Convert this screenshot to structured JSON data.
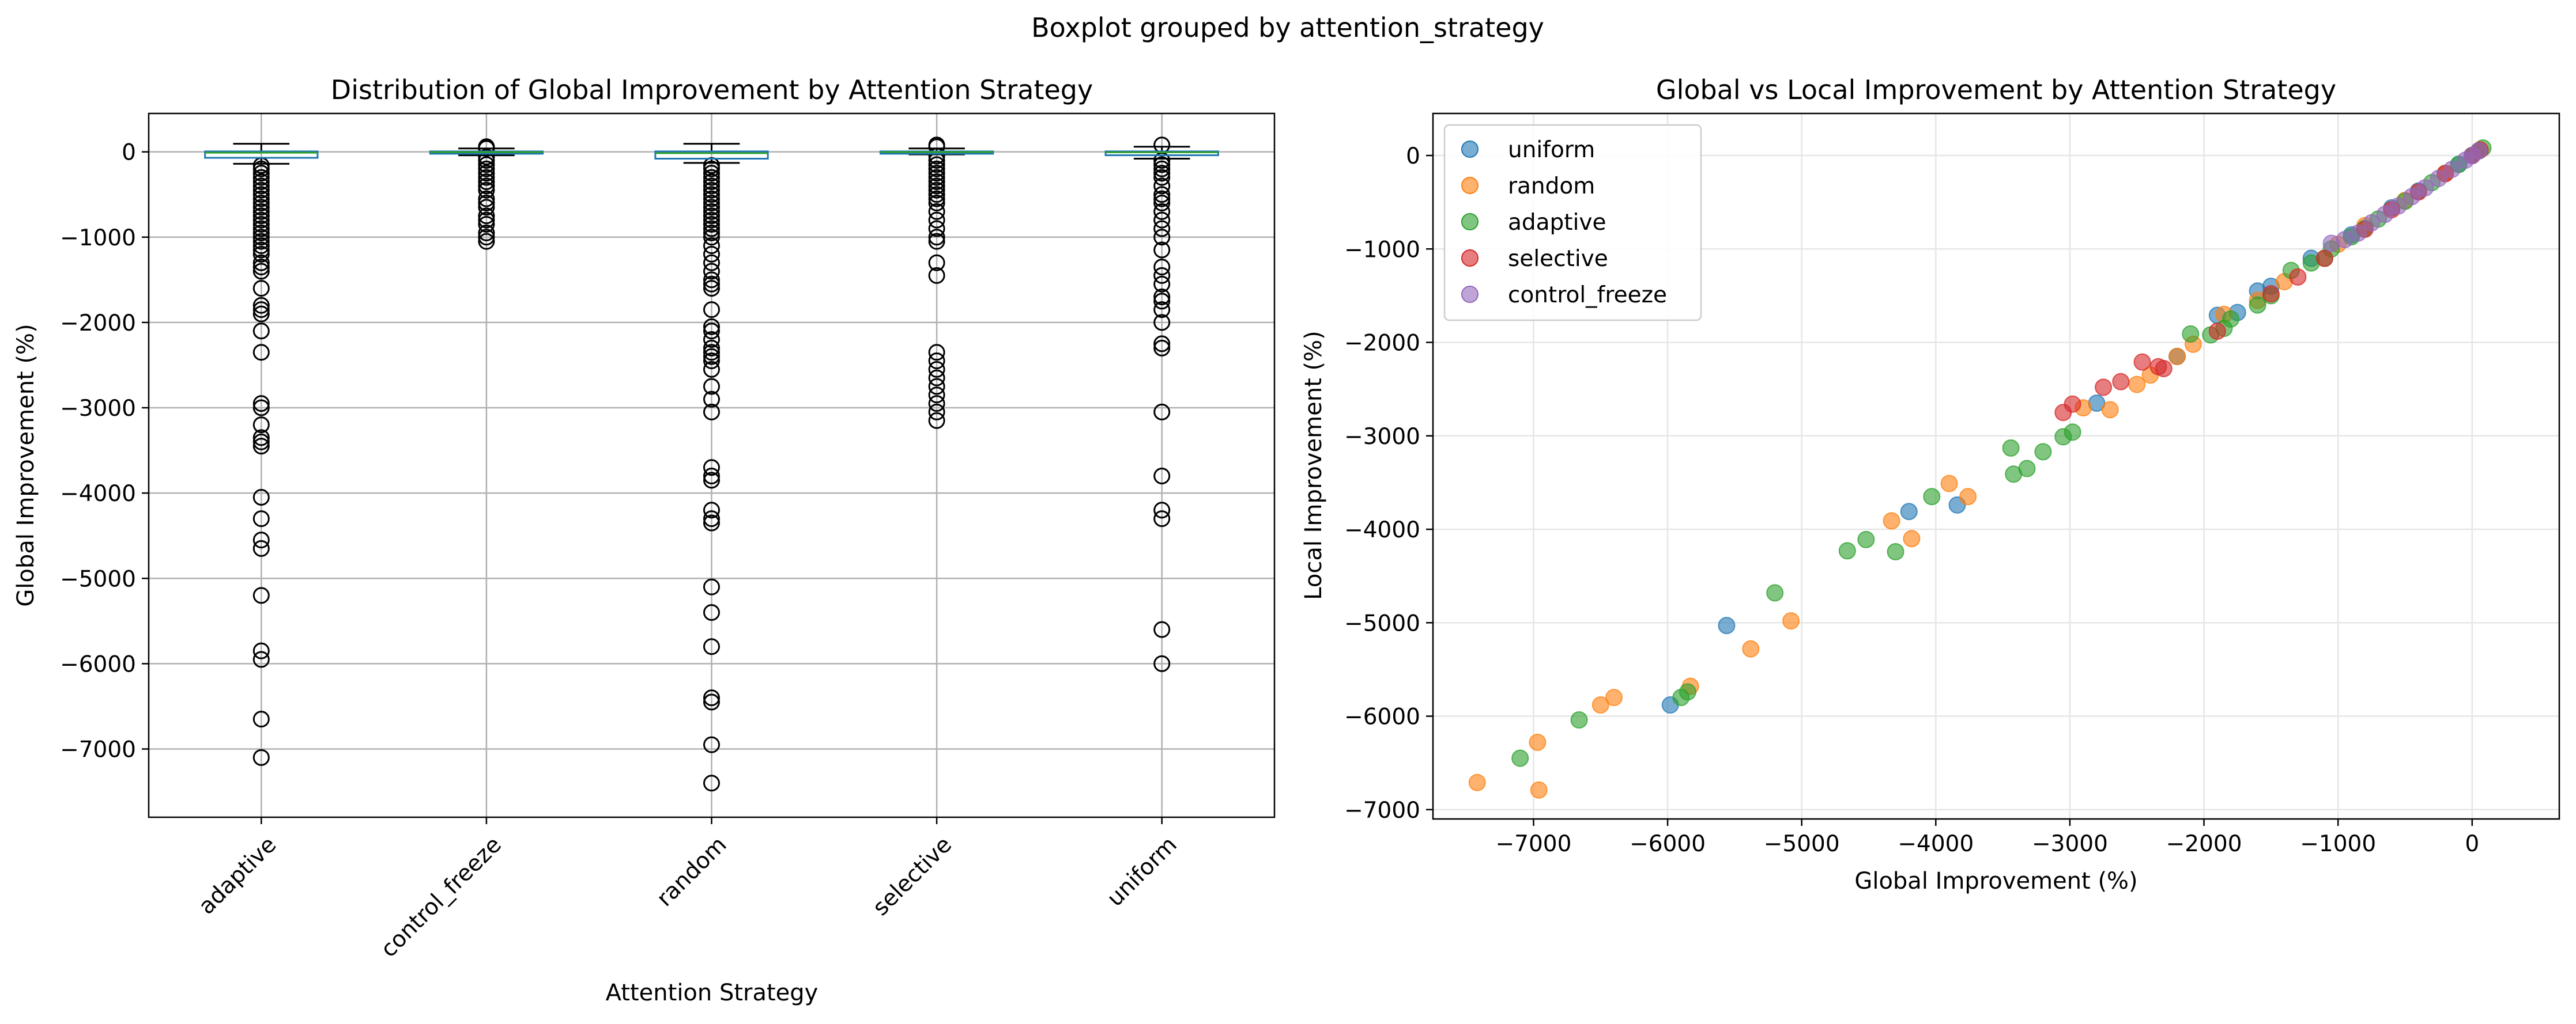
{
  "figure": {
    "suptitle": "Boxplot grouped by attention_strategy"
  },
  "chart_data": [
    {
      "type": "box",
      "title": "Distribution of Global Improvement by Attention Strategy",
      "xlabel": "Attention Strategy",
      "ylabel": "Global Improvement (%)",
      "ylim": [
        -7800,
        450
      ],
      "yticks": [
        0,
        -1000,
        -2000,
        -3000,
        -4000,
        -5000,
        -6000,
        -7000
      ],
      "grid": true,
      "categories": [
        "adaptive",
        "control_freeze",
        "random",
        "selective",
        "uniform"
      ],
      "boxes": [
        {
          "q1": -70,
          "median": -10,
          "q3": 5,
          "whisker_low": -140,
          "whisker_high": 95,
          "outliers": [
            -160,
            -200,
            -250,
            -300,
            -350,
            -400,
            -450,
            -500,
            -550,
            -600,
            -650,
            -700,
            -750,
            -800,
            -850,
            -900,
            -950,
            -1000,
            -1050,
            -1100,
            -1150,
            -1200,
            -1300,
            -1350,
            -1400,
            -1600,
            -1800,
            -1850,
            -1900,
            -2100,
            -2350,
            -2950,
            -3000,
            -3200,
            -3350,
            -3400,
            -3450,
            -4050,
            -4300,
            -4550,
            -4650,
            -5200,
            -5850,
            -5950,
            -6650,
            -7100
          ]
        },
        {
          "q1": -20,
          "median": -3,
          "q3": 5,
          "whisker_low": -40,
          "whisker_high": 40,
          "outliers": [
            60,
            50,
            40,
            -60,
            -100,
            -150,
            -200,
            -250,
            -300,
            -350,
            -400,
            -450,
            -550,
            -600,
            -650,
            -750,
            -800,
            -850,
            -950,
            -1000,
            -1050
          ]
        },
        {
          "q1": -80,
          "median": -15,
          "q3": 5,
          "whisker_low": -130,
          "whisker_high": 95,
          "outliers": [
            -160,
            -200,
            -250,
            -300,
            -350,
            -400,
            -450,
            -500,
            -550,
            -600,
            -650,
            -700,
            -750,
            -800,
            -850,
            -900,
            -950,
            -1000,
            -1100,
            -1200,
            -1300,
            -1400,
            -1500,
            -1550,
            -1600,
            -1850,
            -2050,
            -2100,
            -2200,
            -2300,
            -2350,
            -2400,
            -2450,
            -2550,
            -2750,
            -2900,
            -3050,
            -3700,
            -3800,
            -3850,
            -4200,
            -4300,
            -4350,
            -5100,
            -5400,
            -5800,
            -6400,
            -6450,
            -6950,
            -7400
          ]
        },
        {
          "q1": -15,
          "median": -2,
          "q3": 5,
          "whisker_low": -30,
          "whisker_high": 40,
          "outliers": [
            80,
            60,
            -50,
            -100,
            -150,
            -200,
            -250,
            -300,
            -350,
            -400,
            -450,
            -500,
            -550,
            -600,
            -700,
            -800,
            -900,
            -1000,
            -1050,
            -1300,
            -1450,
            -2350,
            -2450,
            -2550,
            -2650,
            -2750,
            -2850,
            -2950,
            -3050,
            -3150
          ]
        },
        {
          "q1": -40,
          "median": -5,
          "q3": 5,
          "whisker_low": -80,
          "whisker_high": 60,
          "outliers": [
            80,
            -100,
            -150,
            -200,
            -250,
            -300,
            -400,
            -500,
            -550,
            -600,
            -700,
            -800,
            -900,
            -1000,
            -1150,
            -1350,
            -1450,
            -1550,
            -1700,
            -1750,
            -1850,
            -2000,
            -2250,
            -2300,
            -3050,
            -3800,
            -4200,
            -4300,
            -5600,
            -6000
          ]
        }
      ]
    },
    {
      "type": "scatter",
      "title": "Global vs Local Improvement by Attention Strategy",
      "xlabel": "Global Improvement (%)",
      "ylabel": "Local Improvement (%)",
      "xlim": [
        -7750,
        650
      ],
      "ylim": [
        -7100,
        450
      ],
      "xticks": [
        -7000,
        -6000,
        -5000,
        -4000,
        -3000,
        -2000,
        -1000,
        0
      ],
      "yticks": [
        0,
        -1000,
        -2000,
        -3000,
        -4000,
        -5000,
        -6000,
        -7000
      ],
      "grid": true,
      "legend": "top-left",
      "series": [
        {
          "name": "uniform",
          "color": "#1f77b4",
          "points": [
            [
              -5980,
              -5880
            ],
            [
              -5560,
              -5030
            ],
            [
              -4200,
              -3810
            ],
            [
              -3840,
              -3740
            ],
            [
              -2800,
              -2650
            ],
            [
              -2200,
              -2150
            ],
            [
              -1900,
              -1710
            ],
            [
              -1750,
              -1680
            ],
            [
              -1600,
              -1450
            ],
            [
              -1500,
              -1400
            ],
            [
              -1200,
              -1100
            ],
            [
              -900,
              -850
            ],
            [
              -600,
              -560
            ],
            [
              -400,
              -380
            ],
            [
              -200,
              -190
            ],
            [
              -100,
              -95
            ],
            [
              0,
              0
            ],
            [
              50,
              50
            ]
          ]
        },
        {
          "name": "random",
          "color": "#ff7f0e",
          "points": [
            [
              -7420,
              -6710
            ],
            [
              -6960,
              -6790
            ],
            [
              -6970,
              -6280
            ],
            [
              -6500,
              -5880
            ],
            [
              -6400,
              -5800
            ],
            [
              -5830,
              -5680
            ],
            [
              -5380,
              -5280
            ],
            [
              -5080,
              -4980
            ],
            [
              -4330,
              -3910
            ],
            [
              -4180,
              -4100
            ],
            [
              -3900,
              -3510
            ],
            [
              -3760,
              -3650
            ],
            [
              -2900,
              -2700
            ],
            [
              -2700,
              -2720
            ],
            [
              -2500,
              -2450
            ],
            [
              -2400,
              -2350
            ],
            [
              -2200,
              -2150
            ],
            [
              -2080,
              -2020
            ],
            [
              -1850,
              -1700
            ],
            [
              -1600,
              -1550
            ],
            [
              -1400,
              -1350
            ],
            [
              -1000,
              -950
            ],
            [
              -800,
              -750
            ],
            [
              -500,
              -480
            ],
            [
              -200,
              -190
            ],
            [
              0,
              0
            ]
          ]
        },
        {
          "name": "adaptive",
          "color": "#2ca02c",
          "points": [
            [
              -7100,
              -6450
            ],
            [
              -6660,
              -6040
            ],
            [
              -5900,
              -5800
            ],
            [
              -5850,
              -5740
            ],
            [
              -5200,
              -4680
            ],
            [
              -4660,
              -4230
            ],
            [
              -4520,
              -4110
            ],
            [
              -4300,
              -4240
            ],
            [
              -4030,
              -3650
            ],
            [
              -3440,
              -3130
            ],
            [
              -3420,
              -3410
            ],
            [
              -3320,
              -3350
            ],
            [
              -3200,
              -3170
            ],
            [
              -3050,
              -3010
            ],
            [
              -2980,
              -2960
            ],
            [
              -2100,
              -1910
            ],
            [
              -1950,
              -1920
            ],
            [
              -1850,
              -1850
            ],
            [
              -1800,
              -1750
            ],
            [
              -1600,
              -1600
            ],
            [
              -1500,
              -1500
            ],
            [
              -1350,
              -1230
            ],
            [
              -1200,
              -1150
            ],
            [
              -1100,
              -1100
            ],
            [
              -1050,
              -1000
            ],
            [
              -900,
              -870
            ],
            [
              -800,
              -780
            ],
            [
              -700,
              -680
            ],
            [
              -500,
              -490
            ],
            [
              -300,
              -290
            ],
            [
              -100,
              -95
            ],
            [
              0,
              0
            ],
            [
              80,
              80
            ]
          ]
        },
        {
          "name": "selective",
          "color": "#d62728",
          "points": [
            [
              -3050,
              -2750
            ],
            [
              -2980,
              -2660
            ],
            [
              -2750,
              -2480
            ],
            [
              -2620,
              -2420
            ],
            [
              -2460,
              -2210
            ],
            [
              -2340,
              -2260
            ],
            [
              -2300,
              -2280
            ],
            [
              -1900,
              -1880
            ],
            [
              -1500,
              -1480
            ],
            [
              -1300,
              -1300
            ],
            [
              -1100,
              -1100
            ],
            [
              -800,
              -790
            ],
            [
              -600,
              -580
            ],
            [
              -400,
              -390
            ],
            [
              -200,
              -195
            ],
            [
              0,
              0
            ],
            [
              60,
              60
            ]
          ]
        },
        {
          "name": "control_freeze",
          "color": "#9467bd",
          "points": [
            [
              -1050,
              -940
            ],
            [
              -950,
              -900
            ],
            [
              -850,
              -830
            ],
            [
              -750,
              -720
            ],
            [
              -650,
              -630
            ],
            [
              -550,
              -540
            ],
            [
              -450,
              -440
            ],
            [
              -350,
              -345
            ],
            [
              -250,
              -245
            ],
            [
              -150,
              -148
            ],
            [
              -50,
              -50
            ],
            [
              0,
              0
            ],
            [
              50,
              50
            ]
          ]
        }
      ]
    }
  ]
}
